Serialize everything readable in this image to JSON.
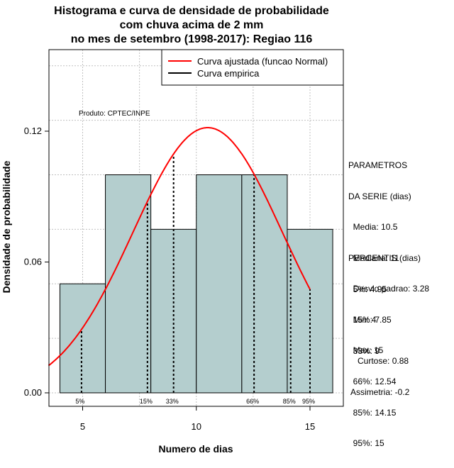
{
  "chart_data": {
    "type": "histogram",
    "title": [
      "Histograma e curva de densidade de probabilidade",
      "com chuva acima de 2 mm",
      "no mes de setembro (1998-2017): Regiao 116"
    ],
    "xlabel": "Numero de dias",
    "ylabel": "Densidade de probabilidade",
    "xlim": [
      3.5,
      16.5
    ],
    "ylim": [
      0,
      0.15
    ],
    "x_ticks": [
      5,
      10,
      15
    ],
    "y_ticks": [
      0.0,
      0.06,
      0.12
    ],
    "y_tick_labels": [
      "0.00",
      "0.06",
      "0.12"
    ],
    "bins": [
      {
        "from": 4,
        "to": 6,
        "density": 0.05
      },
      {
        "from": 6,
        "to": 8,
        "density": 0.1
      },
      {
        "from": 8,
        "to": 10,
        "density": 0.075
      },
      {
        "from": 10,
        "to": 12,
        "density": 0.1
      },
      {
        "from": 12,
        "to": 14,
        "density": 0.1
      },
      {
        "from": 14,
        "to": 16,
        "density": 0.075
      }
    ],
    "normal_curve": {
      "mean": 10.5,
      "sd": 3.28,
      "x_from": 3.5,
      "x_to": 15
    },
    "legend": [
      {
        "label": "Curva ajustada (funcao Normal)",
        "color": "#ff0000"
      },
      {
        "label": "Curva empirica",
        "color": "#000000"
      }
    ],
    "percentile_lines": [
      {
        "label": "5%",
        "x": 4.95
      },
      {
        "label": "15%",
        "x": 7.85
      },
      {
        "label": "33%",
        "x": 9
      },
      {
        "label": "66%",
        "x": 12.54
      },
      {
        "label": "85%",
        "x": 14.15
      },
      {
        "label": "95%",
        "x": 15
      }
    ],
    "annotation": "Produto: CPTEC/INPE",
    "colors": {
      "bar_fill": "#b4cece",
      "curve": "#ff0000",
      "grid": "#c0c0c0"
    }
  },
  "stats_text": {
    "parametros": [
      "PARAMETROS",
      "DA SERIE (dias)",
      "  Media: 10.5",
      "  Mediana: 11",
      "  Desvio padrao: 3.28",
      "  Min: 4",
      "  Max: 15"
    ],
    "percentis": [
      "PERCENTIS (dias)",
      "  5%: 4.95",
      "  15%: 7.85",
      "  33%: 9",
      "  66%: 12.54",
      "  85%: 14.15",
      "  95%: 15"
    ],
    "extra": [
      "   Curtose: 0.88",
      "Assimetria: -0.2"
    ]
  }
}
